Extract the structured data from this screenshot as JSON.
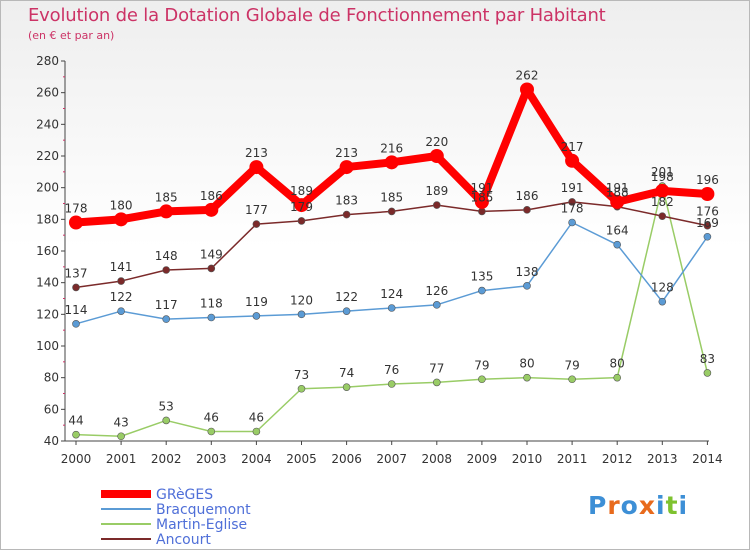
{
  "title": "Evolution de la Dotation Globale de Fonctionnement par Habitant",
  "subtitle": "(en € et par an)",
  "logo": {
    "letters": [
      "P",
      "r",
      "o",
      "x",
      "i",
      "t",
      "i"
    ],
    "colors": [
      "#3d8fd6",
      "#e86a1c",
      "#3d8fd6",
      "#e86a1c",
      "#3d8fd6",
      "#7ec22f",
      "#3d8fd6"
    ]
  },
  "chart_data": {
    "type": "line",
    "x": [
      "2000",
      "2001",
      "2002",
      "2003",
      "2004",
      "2005",
      "2006",
      "2007",
      "2008",
      "2009",
      "2010",
      "2011",
      "2012",
      "2013",
      "2014"
    ],
    "ylim": [
      40,
      280
    ],
    "yticks": [
      40,
      60,
      80,
      100,
      120,
      140,
      160,
      180,
      200,
      220,
      240,
      260,
      280
    ],
    "grid": "none",
    "legend_position": "bottom-left",
    "series": [
      {
        "name": "GRèGES",
        "color": "#ff0000",
        "values": [
          178,
          180,
          185,
          186,
          213,
          189,
          213,
          216,
          220,
          191,
          262,
          217,
          191,
          198,
          196
        ]
      },
      {
        "name": "Bracquemont",
        "color": "#5b9bd5",
        "values": [
          114,
          122,
          117,
          118,
          119,
          120,
          122,
          124,
          126,
          135,
          138,
          178,
          164,
          128,
          169
        ]
      },
      {
        "name": "Martin-Eglise",
        "color": "#99cc66",
        "values": [
          44,
          43,
          53,
          46,
          46,
          73,
          74,
          76,
          77,
          79,
          80,
          79,
          80,
          201,
          83
        ]
      },
      {
        "name": "Ancourt",
        "color": "#7b2a2a",
        "values": [
          137,
          141,
          148,
          149,
          177,
          179,
          183,
          185,
          189,
          185,
          186,
          191,
          188,
          182,
          176
        ]
      }
    ]
  }
}
